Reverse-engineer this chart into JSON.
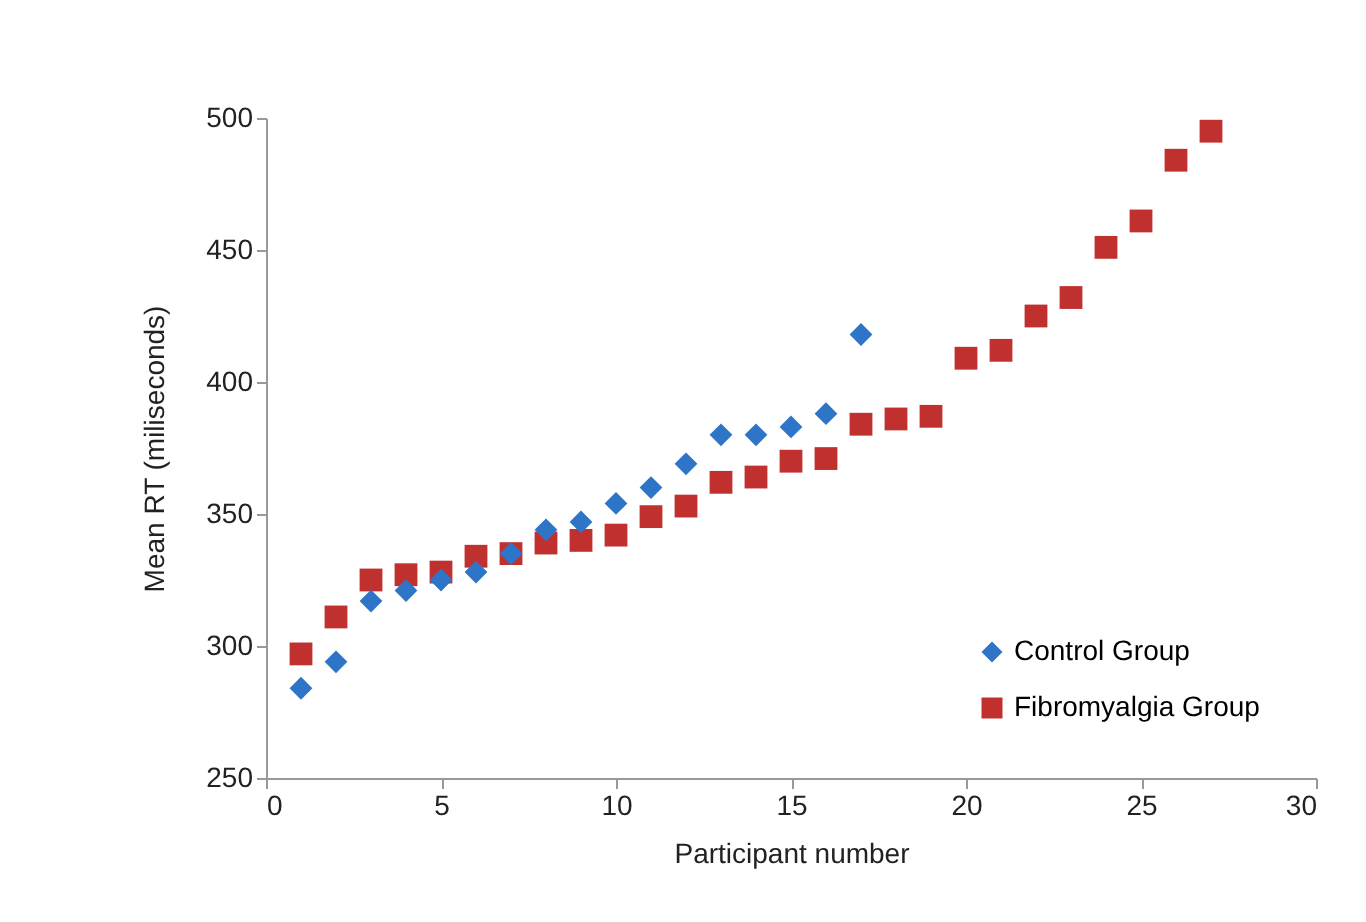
{
  "chart_data": {
    "type": "scatter",
    "xlabel": "Participant number",
    "ylabel": "Mean RT (miliseconds)",
    "xlim": [
      0,
      30
    ],
    "xticks": [
      0,
      5,
      10,
      15,
      20,
      25,
      30
    ],
    "ylim": [
      250,
      500
    ],
    "yticks": [
      250,
      300,
      350,
      400,
      450,
      500
    ],
    "grid": false,
    "legend": "bottom right",
    "series": [
      {
        "name": "Control Group",
        "color": "#2e75c8",
        "marker": "diamond",
        "x": [
          1,
          2,
          3,
          4,
          5,
          6,
          7,
          8,
          9,
          10,
          11,
          12,
          13,
          14,
          15,
          16,
          17
        ],
        "values": [
          284,
          294,
          317,
          321,
          325,
          328,
          335,
          344,
          347,
          354,
          360,
          369,
          380,
          380,
          383,
          388,
          418
        ]
      },
      {
        "name": "Fibromyalgia Group",
        "color": "#c0302e",
        "marker": "square",
        "x": [
          1,
          2,
          3,
          4,
          5,
          6,
          7,
          8,
          9,
          10,
          11,
          12,
          13,
          14,
          15,
          16,
          17,
          18,
          19,
          20,
          21,
          22,
          23,
          24,
          25,
          26,
          27
        ],
        "values": [
          297,
          311,
          325,
          327,
          328,
          334,
          335,
          339,
          340,
          342,
          349,
          353,
          362,
          364,
          370,
          371,
          384,
          386,
          387,
          409,
          412,
          425,
          432,
          451,
          461,
          484,
          495
        ]
      }
    ]
  }
}
